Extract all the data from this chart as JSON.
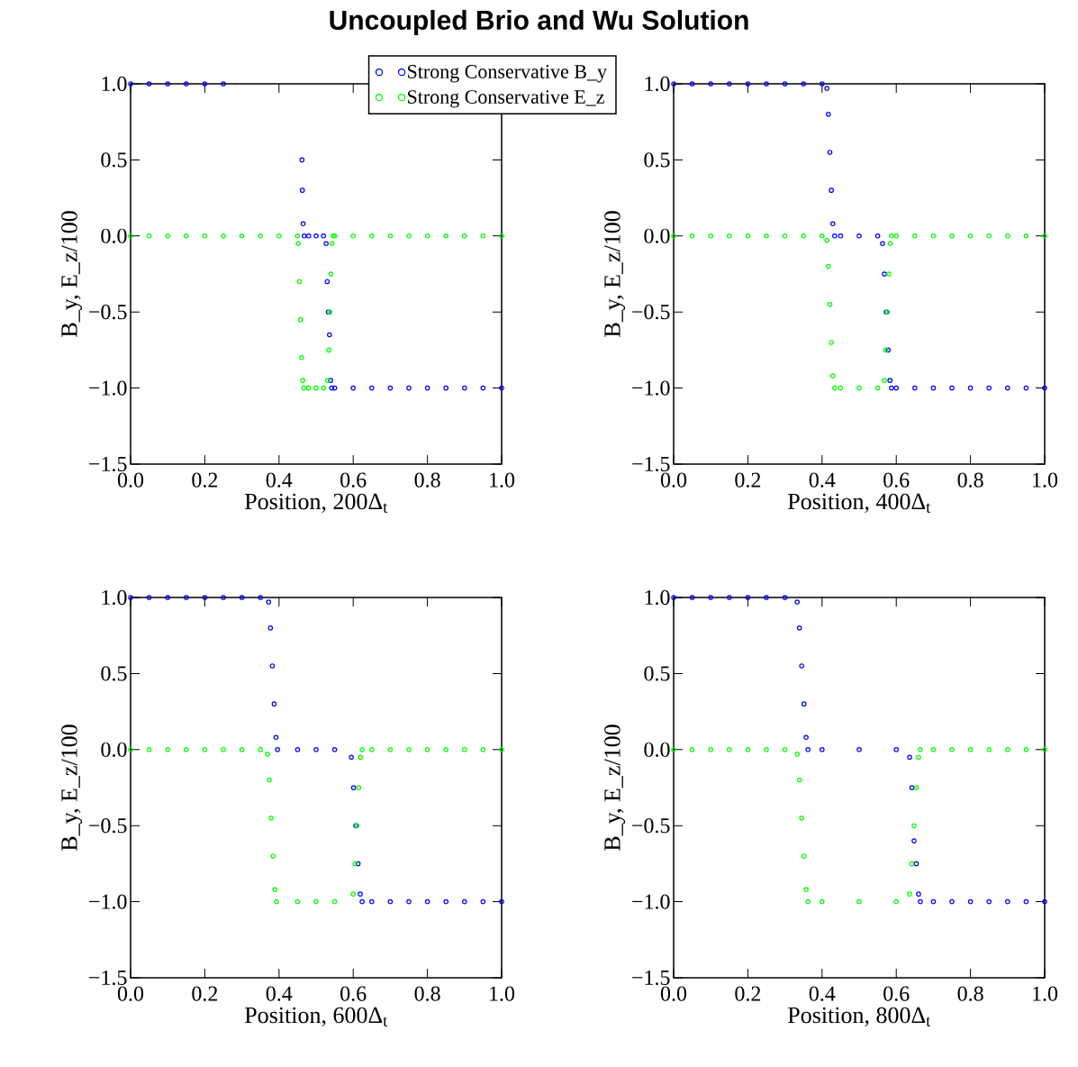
{
  "chart_data": [
    {
      "type": "scatter",
      "title": "Uncoupled Brio and Wu Solution",
      "xlabel": "Position, 200Δ$_{t}$",
      "ylabel": "B_y, E_z/100",
      "marker": "circle",
      "legend": "top right",
      "xlim": [
        0,
        1
      ],
      "ylim": [
        -1.5,
        1
      ],
      "xticks": [
        {
          "value": 0,
          "label": "0.0"
        },
        {
          "value": 0.2,
          "label": "0.2"
        },
        {
          "value": 0.4,
          "label": "0.4"
        },
        {
          "value": 0.6,
          "label": "0.6"
        },
        {
          "value": 0.8,
          "label": "0.8"
        },
        {
          "value": 1,
          "label": "1.0"
        }
      ],
      "yticks": [
        {
          "value": -1.5,
          "label": "−1.5"
        },
        {
          "value": -1,
          "label": "−1.0"
        },
        {
          "value": -0.5,
          "label": "−0.5"
        },
        {
          "value": 0,
          "label": "0.0"
        },
        {
          "value": 0.5,
          "label": "0.5"
        },
        {
          "value": 1,
          "label": "1.0"
        }
      ],
      "series": [
        {
          "name": "Strong Conservative B_y",
          "color": "#0000ff",
          "x": [
            0,
            0.05,
            0.1,
            0.15,
            0.2,
            0.25,
            0.462,
            0.463,
            0.465,
            0.468,
            0.48,
            0.5,
            0.52,
            0.527,
            0.53,
            0.533,
            0.536,
            0.539,
            0.542,
            0.55,
            0.6,
            0.65,
            0.7,
            0.75,
            0.8,
            0.85,
            0.9,
            0.95,
            1
          ],
          "values": [
            1,
            1,
            1,
            1,
            1,
            1,
            0.5,
            0.3,
            0.08,
            0,
            0,
            0,
            0,
            -0.05,
            -0.3,
            -0.5,
            -0.65,
            -0.95,
            -1,
            -1,
            -1,
            -1,
            -1,
            -1,
            -1,
            -1,
            -1,
            -1,
            -1
          ]
        },
        {
          "name": "Strong Conservative E_z",
          "color": "#00ff00",
          "x": [
            0,
            0.05,
            0.1,
            0.15,
            0.2,
            0.25,
            0.3,
            0.35,
            0.4,
            0.45,
            0.452,
            0.455,
            0.458,
            0.461,
            0.464,
            0.467,
            0.48,
            0.5,
            0.52,
            0.531,
            0.534,
            0.537,
            0.54,
            0.543,
            0.546,
            0.55,
            0.6,
            0.65,
            0.7,
            0.75,
            0.8,
            0.85,
            0.9,
            0.95,
            1
          ],
          "values": [
            0,
            0,
            0,
            0,
            0,
            0,
            0,
            0,
            0,
            0,
            -0.05,
            -0.3,
            -0.55,
            -0.8,
            -0.95,
            -1,
            -1,
            -1,
            -1,
            -0.95,
            -0.75,
            -0.5,
            -0.25,
            -0.05,
            0,
            0,
            0,
            0,
            0,
            0,
            0,
            0,
            0,
            0,
            0
          ]
        }
      ]
    },
    {
      "type": "scatter",
      "xlabel": "Position, 400Δ$_{t}$",
      "ylabel": "B_y, E_z/100",
      "marker": "circle",
      "xlim": [
        0,
        1
      ],
      "ylim": [
        -1.5,
        1
      ],
      "xticks": [
        {
          "value": 0,
          "label": "0.0"
        },
        {
          "value": 0.2,
          "label": "0.2"
        },
        {
          "value": 0.4,
          "label": "0.4"
        },
        {
          "value": 0.6,
          "label": "0.6"
        },
        {
          "value": 0.8,
          "label": "0.8"
        },
        {
          "value": 1,
          "label": "1.0"
        }
      ],
      "yticks": [
        {
          "value": -1.5,
          "label": "−1.5"
        },
        {
          "value": -1,
          "label": "−1.0"
        },
        {
          "value": -0.5,
          "label": "−0.5"
        },
        {
          "value": 0,
          "label": "0.0"
        },
        {
          "value": 0.5,
          "label": "0.5"
        },
        {
          "value": 1,
          "label": "1.0"
        }
      ],
      "series": [
        {
          "color": "#0000ff",
          "x": [
            0,
            0.05,
            0.1,
            0.15,
            0.2,
            0.25,
            0.3,
            0.35,
            0.4,
            0.413,
            0.417,
            0.421,
            0.425,
            0.429,
            0.434,
            0.45,
            0.5,
            0.55,
            0.563,
            0.568,
            0.573,
            0.578,
            0.583,
            0.587,
            0.6,
            0.65,
            0.7,
            0.75,
            0.8,
            0.85,
            0.9,
            0.95,
            1
          ],
          "values": [
            1,
            1,
            1,
            1,
            1,
            1,
            1,
            1,
            1,
            0.97,
            0.8,
            0.55,
            0.3,
            0.08,
            0,
            0,
            0,
            0,
            -0.05,
            -0.25,
            -0.5,
            -0.75,
            -0.95,
            -1,
            -1,
            -1,
            -1,
            -1,
            -1,
            -1,
            -1,
            -1,
            -1
          ]
        },
        {
          "color": "#00ff00",
          "x": [
            0,
            0.05,
            0.1,
            0.15,
            0.2,
            0.25,
            0.3,
            0.35,
            0.4,
            0.413,
            0.417,
            0.421,
            0.425,
            0.429,
            0.434,
            0.45,
            0.5,
            0.55,
            0.568,
            0.572,
            0.576,
            0.58,
            0.584,
            0.587,
            0.6,
            0.65,
            0.7,
            0.75,
            0.8,
            0.85,
            0.9,
            0.95,
            1
          ],
          "values": [
            0,
            0,
            0,
            0,
            0,
            0,
            0,
            0,
            0,
            -0.03,
            -0.2,
            -0.45,
            -0.7,
            -0.92,
            -1,
            -1,
            -1,
            -1,
            -0.95,
            -0.75,
            -0.5,
            -0.25,
            -0.05,
            0,
            0,
            0,
            0,
            0,
            0,
            0,
            0,
            0,
            0
          ]
        }
      ]
    },
    {
      "type": "scatter",
      "xlabel": "Position, 600Δ$_{t}$",
      "ylabel": "B_y, E_z/100",
      "marker": "circle",
      "xlim": [
        0,
        1
      ],
      "ylim": [
        -1.5,
        1
      ],
      "xticks": [
        {
          "value": 0,
          "label": "0.0"
        },
        {
          "value": 0.2,
          "label": "0.2"
        },
        {
          "value": 0.4,
          "label": "0.4"
        },
        {
          "value": 0.6,
          "label": "0.6"
        },
        {
          "value": 0.8,
          "label": "0.8"
        },
        {
          "value": 1,
          "label": "1.0"
        }
      ],
      "yticks": [
        {
          "value": -1.5,
          "label": "−1.5"
        },
        {
          "value": -1,
          "label": "−1.0"
        },
        {
          "value": -0.5,
          "label": "−0.5"
        },
        {
          "value": 0,
          "label": "0.0"
        },
        {
          "value": 0.5,
          "label": "0.5"
        },
        {
          "value": 1,
          "label": "1.0"
        }
      ],
      "series": [
        {
          "color": "#0000ff",
          "x": [
            0,
            0.05,
            0.1,
            0.15,
            0.2,
            0.25,
            0.3,
            0.35,
            0.372,
            0.377,
            0.382,
            0.387,
            0.392,
            0.396,
            0.45,
            0.5,
            0.55,
            0.595,
            0.601,
            0.607,
            0.613,
            0.619,
            0.624,
            0.65,
            0.7,
            0.75,
            0.8,
            0.85,
            0.9,
            0.95,
            1
          ],
          "values": [
            1,
            1,
            1,
            1,
            1,
            1,
            1,
            1,
            0.97,
            0.8,
            0.55,
            0.3,
            0.08,
            0,
            0,
            0,
            0,
            -0.05,
            -0.25,
            -0.5,
            -0.75,
            -0.95,
            -1,
            -1,
            -1,
            -1,
            -1,
            -1,
            -1,
            -1,
            -1
          ]
        },
        {
          "color": "#00ff00",
          "x": [
            0,
            0.05,
            0.1,
            0.15,
            0.2,
            0.25,
            0.3,
            0.35,
            0.369,
            0.374,
            0.379,
            0.384,
            0.389,
            0.393,
            0.45,
            0.5,
            0.55,
            0.6,
            0.605,
            0.61,
            0.615,
            0.62,
            0.624,
            0.65,
            0.7,
            0.75,
            0.8,
            0.85,
            0.9,
            0.95,
            1
          ],
          "values": [
            0,
            0,
            0,
            0,
            0,
            0,
            0,
            0,
            -0.03,
            -0.2,
            -0.45,
            -0.7,
            -0.92,
            -1,
            -1,
            -1,
            -1,
            -0.95,
            -0.75,
            -0.5,
            -0.25,
            -0.05,
            0,
            0,
            0,
            0,
            0,
            0,
            0,
            0,
            0
          ]
        }
      ]
    },
    {
      "type": "scatter",
      "xlabel": "Position, 800Δ$_{t}$",
      "ylabel": "B_y, E_z/100",
      "marker": "circle",
      "xlim": [
        0,
        1
      ],
      "ylim": [
        -1.5,
        1
      ],
      "xticks": [
        {
          "value": 0,
          "label": "0.0"
        },
        {
          "value": 0.2,
          "label": "0.2"
        },
        {
          "value": 0.4,
          "label": "0.4"
        },
        {
          "value": 0.6,
          "label": "0.6"
        },
        {
          "value": 0.8,
          "label": "0.8"
        },
        {
          "value": 1,
          "label": "1.0"
        }
      ],
      "yticks": [
        {
          "value": -1.5,
          "label": "−1.5"
        },
        {
          "value": -1,
          "label": "−1.0"
        },
        {
          "value": -0.5,
          "label": "−0.5"
        },
        {
          "value": 0,
          "label": "0.0"
        },
        {
          "value": 0.5,
          "label": "0.5"
        },
        {
          "value": 1,
          "label": "1.0"
        }
      ],
      "series": [
        {
          "color": "#0000ff",
          "x": [
            0,
            0.05,
            0.1,
            0.15,
            0.2,
            0.25,
            0.3,
            0.333,
            0.339,
            0.345,
            0.351,
            0.357,
            0.362,
            0.4,
            0.5,
            0.6,
            0.636,
            0.642,
            0.648,
            0.654,
            0.66,
            0.665,
            0.7,
            0.75,
            0.8,
            0.85,
            0.9,
            0.95,
            1
          ],
          "values": [
            1,
            1,
            1,
            1,
            1,
            1,
            1,
            0.97,
            0.8,
            0.55,
            0.3,
            0.08,
            0,
            0,
            0,
            0,
            -0.05,
            -0.25,
            -0.6,
            -0.75,
            -0.95,
            -1,
            -1,
            -1,
            -1,
            -1,
            -1,
            -1,
            -1
          ]
        },
        {
          "color": "#00ff00",
          "x": [
            0,
            0.05,
            0.1,
            0.15,
            0.2,
            0.25,
            0.3,
            0.333,
            0.339,
            0.345,
            0.351,
            0.357,
            0.362,
            0.4,
            0.5,
            0.6,
            0.636,
            0.642,
            0.648,
            0.654,
            0.66,
            0.665,
            0.7,
            0.75,
            0.8,
            0.85,
            0.9,
            0.95,
            1
          ],
          "values": [
            0,
            0,
            0,
            0,
            0,
            0,
            0,
            -0.03,
            -0.2,
            -0.45,
            -0.7,
            -0.92,
            -1,
            -1,
            -1,
            -1,
            -0.95,
            -0.75,
            -0.5,
            -0.25,
            -0.05,
            0,
            0,
            0,
            0,
            0,
            0,
            0,
            0
          ]
        }
      ]
    }
  ]
}
